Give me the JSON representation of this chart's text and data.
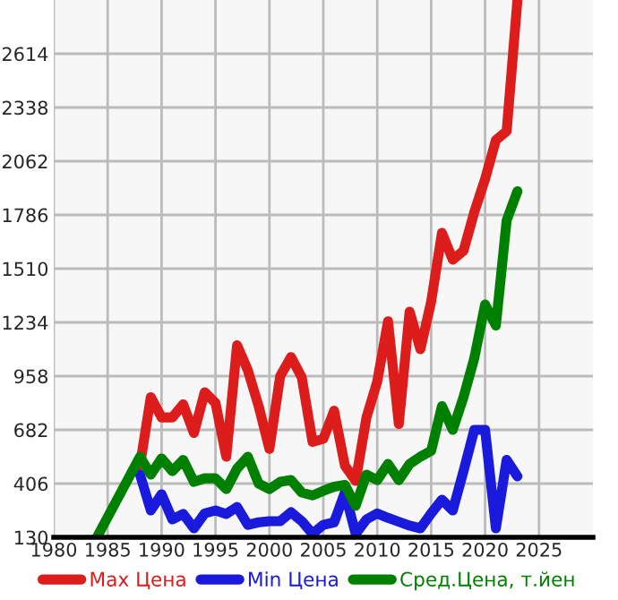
{
  "chart_data": {
    "type": "line",
    "xlim": [
      1980,
      2030
    ],
    "xticks": [
      1980,
      1985,
      1990,
      1995,
      2000,
      2005,
      2010,
      2015,
      2020,
      2025
    ],
    "ylim": [
      130,
      2890
    ],
    "yticks": [
      130,
      406,
      682,
      958,
      1234,
      1510,
      1786,
      2062,
      2338,
      2614
    ],
    "grid": true,
    "legend": "bottom",
    "marker": "none",
    "line_style": "solid",
    "series": [
      {
        "name": "Max Цена",
        "color": "#dd1c1c",
        "x": [
          1988,
          1989,
          1990,
          1991,
          1992,
          1993,
          1994,
          1995,
          1996,
          1997,
          1998,
          1999,
          2000,
          2001,
          2002,
          2003,
          2004,
          2005,
          2006,
          2007,
          2008,
          2009,
          2010,
          2011,
          2012,
          2013,
          2014,
          2015,
          2016,
          2017,
          2018,
          2019,
          2020,
          2021,
          2022,
          2023
        ],
        "values": [
          500,
          850,
          746,
          746,
          813,
          666,
          875,
          820,
          544,
          1117,
          988,
          804,
          584,
          958,
          1056,
          952,
          620,
          636,
          780,
          498,
          420,
          746,
          930,
          1240,
          712,
          1289,
          1096,
          1341,
          1694,
          1556,
          1602,
          1801,
          1970,
          2170,
          2216,
          2890
        ]
      },
      {
        "name": "Min Цена",
        "color": "#1a1adc",
        "x": [
          1988,
          1989,
          1990,
          1991,
          1992,
          1993,
          1994,
          1995,
          1996,
          1997,
          1998,
          1999,
          2000,
          2001,
          2002,
          2003,
          2004,
          2005,
          2006,
          2007,
          2008,
          2009,
          2010,
          2011,
          2012,
          2013,
          2014,
          2015,
          2016,
          2017,
          2018,
          2019,
          2020,
          2021,
          2022,
          2023
        ],
        "values": [
          452,
          268,
          351,
          222,
          250,
          176,
          253,
          268,
          250,
          286,
          194,
          207,
          213,
          213,
          259,
          213,
          148,
          194,
          207,
          360,
          148,
          222,
          253,
          230,
          210,
          190,
          176,
          253,
          323,
          268,
          470,
          682,
          682,
          176,
          528,
          443
        ]
      },
      {
        "name": "Сред.Цена, т.йен",
        "color": "#008000",
        "x": [
          1984,
          1988,
          1989,
          1990,
          1991,
          1992,
          1993,
          1994,
          1995,
          1996,
          1997,
          1998,
          1999,
          2000,
          2001,
          2002,
          2003,
          2004,
          2005,
          2006,
          2007,
          2008,
          2009,
          2010,
          2011,
          2012,
          2013,
          2014,
          2015,
          2016,
          2017,
          2018,
          2019,
          2020,
          2021,
          2022,
          2023
        ],
        "values": [
          130,
          544,
          452,
          535,
          470,
          528,
          415,
          433,
          433,
          378,
          483,
          544,
          406,
          378,
          415,
          424,
          360,
          345,
          369,
          390,
          399,
          292,
          452,
          424,
          507,
          424,
          507,
          544,
          574,
          804,
          682,
          850,
          1050,
          1326,
          1218,
          1758,
          1908
        ]
      }
    ]
  }
}
